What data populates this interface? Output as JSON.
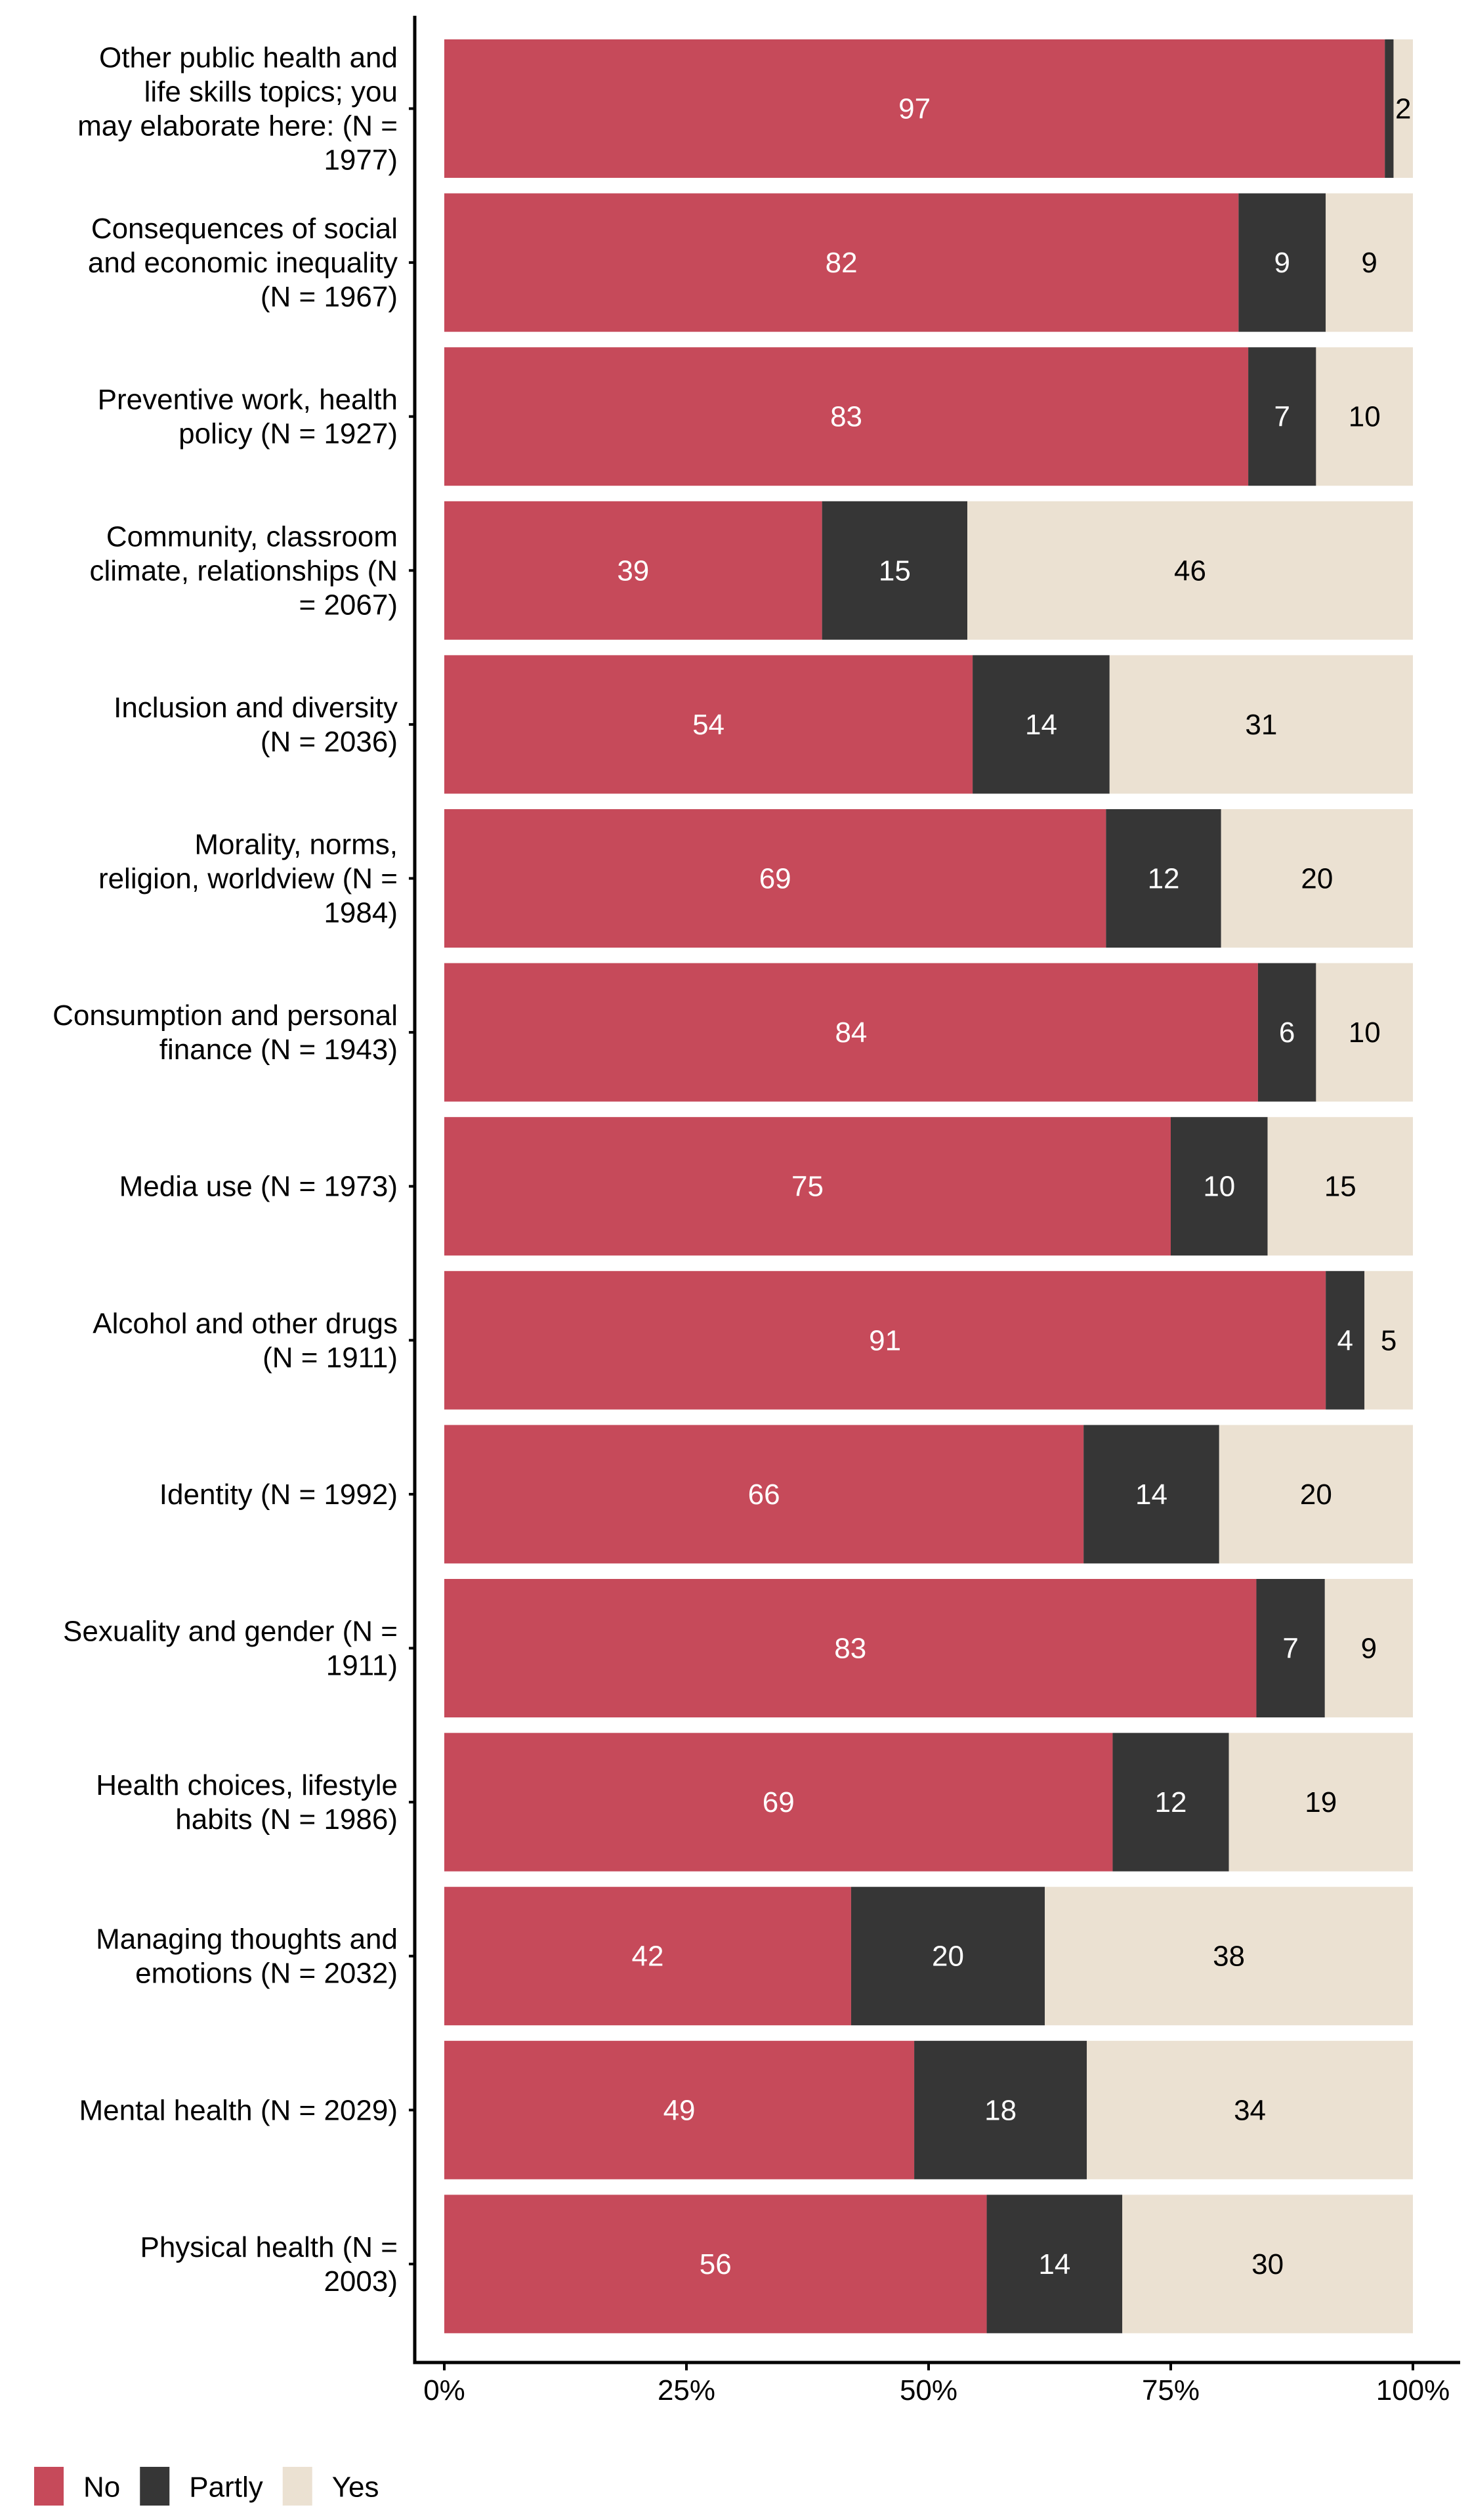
{
  "chart_data": {
    "type": "bar",
    "orientation": "horizontal",
    "stacked": true,
    "title": "",
    "xlabel": "",
    "ylabel": "",
    "xlim": [
      0,
      100
    ],
    "x_ticks": [
      "0%",
      "25%",
      "50%",
      "75%",
      "100%"
    ],
    "x_tick_values": [
      0,
      25,
      50,
      75,
      100
    ],
    "grid": false,
    "legend_position": "bottom-left",
    "series": [
      {
        "name": "No",
        "color": "#c64a5a",
        "label_color": "#ffffff"
      },
      {
        "name": "Partly",
        "color": "#363636",
        "label_color": "#ffffff"
      },
      {
        "name": "Yes",
        "color": "#ebe1d2",
        "label_color": "#000000"
      }
    ],
    "categories": [
      {
        "lines": [
          "Other public health and",
          "life skills topics; you",
          "may elaborate here: (N =",
          "1977)"
        ],
        "label": "Other public health and life skills topics; you may elaborate here: (N = 1977)",
        "values": [
          97.1,
          0.9,
          2.0
        ],
        "labels": [
          "97",
          "",
          "2"
        ]
      },
      {
        "lines": [
          "Consequences of social",
          "and economic inequality",
          "(N = 1967)"
        ],
        "label": "Consequences of social and economic inequality (N = 1967)",
        "values": [
          82,
          9,
          9
        ],
        "labels": [
          "82",
          "9",
          "9"
        ]
      },
      {
        "lines": [
          "Preventive work, health",
          "policy (N = 1927)"
        ],
        "label": "Preventive work, health policy (N = 1927)",
        "values": [
          83,
          7,
          10
        ],
        "labels": [
          "83",
          "7",
          "10"
        ]
      },
      {
        "lines": [
          "Community, classroom",
          "climate, relationships (N",
          "= 2067)"
        ],
        "label": "Community, classroom climate, relationships (N = 2067)",
        "values": [
          39,
          15,
          46
        ],
        "labels": [
          "39",
          "15",
          "46"
        ]
      },
      {
        "lines": [
          "Inclusion and diversity",
          "(N = 2036)"
        ],
        "label": "Inclusion and diversity (N = 2036)",
        "values": [
          54,
          14,
          31
        ],
        "labels": [
          "54",
          "14",
          "31"
        ]
      },
      {
        "lines": [
          "Morality, norms,",
          "religion, worldview (N =",
          "1984)"
        ],
        "label": "Morality, norms, religion, worldview (N = 1984)",
        "values": [
          69,
          12,
          20
        ],
        "labels": [
          "69",
          "12",
          "20"
        ]
      },
      {
        "lines": [
          "Consumption and personal",
          "finance (N = 1943)"
        ],
        "label": "Consumption and personal finance (N = 1943)",
        "values": [
          84,
          6,
          10
        ],
        "labels": [
          "84",
          "6",
          "10"
        ]
      },
      {
        "lines": [
          "Media use (N = 1973)"
        ],
        "label": "Media use (N = 1973)",
        "values": [
          75,
          10,
          15
        ],
        "labels": [
          "75",
          "10",
          "15"
        ]
      },
      {
        "lines": [
          "Alcohol and other drugs",
          "(N = 1911)"
        ],
        "label": "Alcohol and other drugs (N = 1911)",
        "values": [
          91,
          4,
          5
        ],
        "labels": [
          "91",
          "4",
          "5"
        ]
      },
      {
        "lines": [
          "Identity (N = 1992)"
        ],
        "label": "Identity (N = 1992)",
        "values": [
          66,
          14,
          20
        ],
        "labels": [
          "66",
          "14",
          "20"
        ]
      },
      {
        "lines": [
          "Sexuality and gender (N =",
          "1911)"
        ],
        "label": "Sexuality and gender (N = 1911)",
        "values": [
          83,
          7,
          9
        ],
        "labels": [
          "83",
          "7",
          "9"
        ]
      },
      {
        "lines": [
          "Health choices, lifestyle",
          "habits (N = 1986)"
        ],
        "label": "Health choices, lifestyle habits (N = 1986)",
        "values": [
          69,
          12,
          19
        ],
        "labels": [
          "69",
          "12",
          "19"
        ]
      },
      {
        "lines": [
          "Managing thoughts and",
          "emotions (N = 2032)"
        ],
        "label": "Managing thoughts and emotions (N = 2032)",
        "values": [
          42,
          20,
          38
        ],
        "labels": [
          "42",
          "20",
          "38"
        ]
      },
      {
        "lines": [
          "Mental health (N = 2029)"
        ],
        "label": "Mental health (N = 2029)",
        "values": [
          49,
          18,
          34
        ],
        "labels": [
          "49",
          "18",
          "34"
        ]
      },
      {
        "lines": [
          "Physical health (N =",
          "2003)"
        ],
        "label": "Physical health (N = 2003)",
        "values": [
          56,
          14,
          30
        ],
        "labels": [
          "56",
          "14",
          "30"
        ]
      }
    ]
  }
}
